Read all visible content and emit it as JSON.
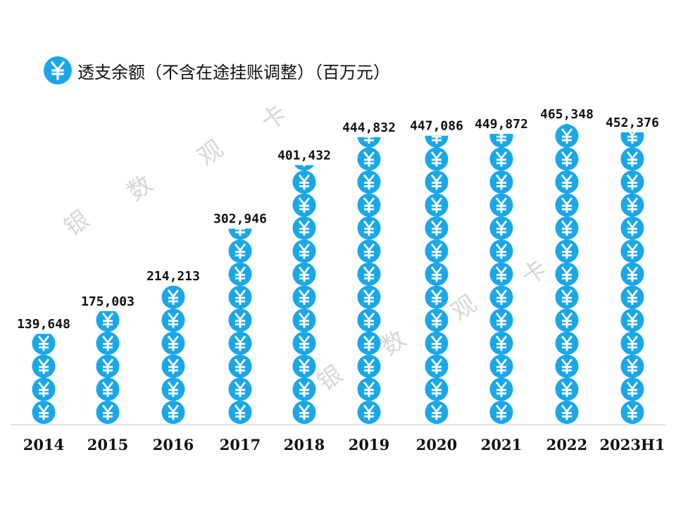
{
  "title": "透支余额（不含在途挂账调整）（百万元）",
  "title_icon": "yuan-icon",
  "watermark": [
    "银",
    "数",
    "观",
    "卡"
  ],
  "colors": {
    "icon": "#1AA7E8",
    "baseline": "#D9D9D9"
  },
  "chart_data": {
    "type": "bar",
    "style": "pictograph",
    "pictogram": "yuan-coin-icon",
    "title": "透支余额（不含在途挂账调整）（百万元）",
    "categories": [
      "2014",
      "2015",
      "2016",
      "2017",
      "2018",
      "2019",
      "2020",
      "2021",
      "2022",
      "2023H1"
    ],
    "values": [
      139648,
      175003,
      214213,
      302946,
      401432,
      444832,
      447086,
      449872,
      465348,
      452376
    ],
    "value_labels": [
      "139,648",
      "175,003",
      "214,213",
      "302,946",
      "401,432",
      "444,832",
      "447,086",
      "449,872",
      "465,348",
      "452,376"
    ],
    "xlabel": "",
    "ylabel": "",
    "grid": false,
    "legend": "none"
  }
}
